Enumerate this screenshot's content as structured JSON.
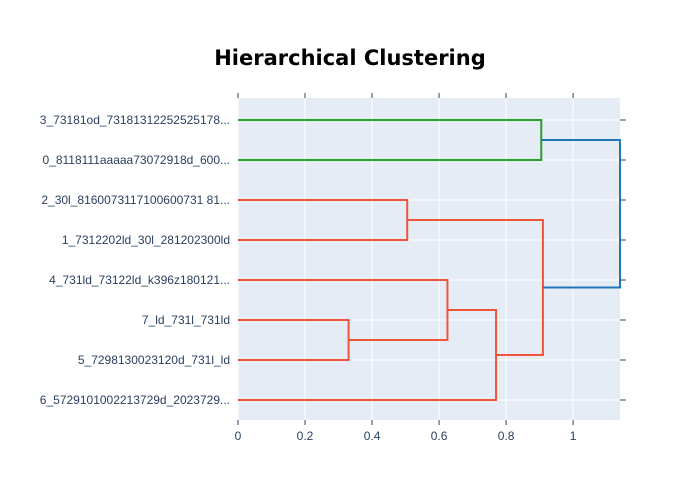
{
  "chart_data": {
    "type": "dendrogram",
    "orientation": "horizontal",
    "title": "Hierarchical Clustering",
    "xlabel": "",
    "ylabel": "",
    "xlim": [
      0,
      1.14
    ],
    "x_ticks": [
      0,
      0.2,
      0.4,
      0.6,
      0.8,
      1
    ],
    "x_tick_labels": [
      "0",
      "0.2",
      "0.4",
      "0.6",
      "0.8",
      "1"
    ],
    "leaves": [
      "3_73181od_73181312252525178...",
      "0_8118111aaaaa73072918d_600...",
      "2_30l_8160073117100600731 81...",
      "1_7312202ld_30l_281202300ld",
      "4_731ld_73122ld_k396z180121...",
      "7_ld_731l_731ld",
      "5_7298130023120d_731l_ld",
      "6_5729101002213729d_2023729..."
    ],
    "links": [
      {
        "id": "A",
        "height": 0.905,
        "left": 0,
        "right": 1,
        "color": "#2ca02c"
      },
      {
        "id": "B",
        "height": 0.505,
        "left": 2,
        "right": 3,
        "color": "#ef553b"
      },
      {
        "id": "C",
        "height": 0.33,
        "left": 5,
        "right": 6,
        "color": "#ef553b"
      },
      {
        "id": "D",
        "height": 0.625,
        "left": 4,
        "right": "C",
        "color": "#ef553b"
      },
      {
        "id": "E",
        "height": 0.77,
        "left": "D",
        "right": 7,
        "color": "#ef553b"
      },
      {
        "id": "F",
        "height": 0.91,
        "left": "B",
        "right": "E",
        "color": "#ef553b"
      },
      {
        "id": "G",
        "height": 1.14,
        "left": "A",
        "right": "F",
        "color": "#1f77b4"
      }
    ],
    "colors": {
      "plot_bg": "#e5ecf6",
      "grid": "#ffffff",
      "axis": "#2a3f5f"
    },
    "grid": true,
    "legend": "none"
  }
}
